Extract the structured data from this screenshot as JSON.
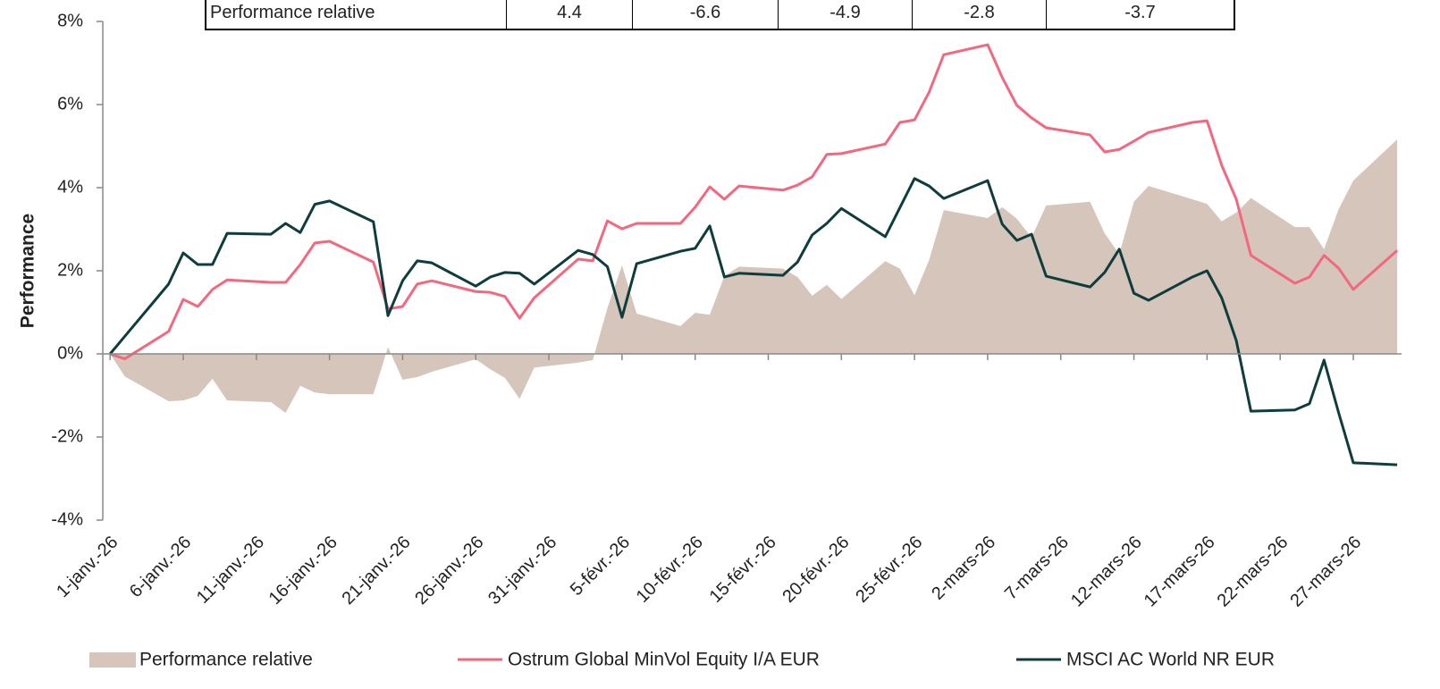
{
  "table": {
    "rows": [
      [
        "Performance relative",
        "4.4",
        "-6.6",
        "-4.9",
        "-2.8",
        "-3.7"
      ]
    ]
  },
  "chart_data": {
    "type": "line",
    "ylabel": "Performance",
    "x": [
      0,
      1,
      4,
      5,
      6,
      7,
      8,
      11,
      12,
      13,
      14,
      15,
      18,
      19,
      20,
      21,
      22,
      25,
      26,
      27,
      28,
      29,
      32,
      33,
      34,
      35,
      36,
      39,
      40,
      41,
      42,
      43,
      46,
      47,
      48,
      49,
      50,
      53,
      54,
      55,
      56,
      57,
      60,
      61,
      62,
      63,
      64,
      67,
      68,
      69,
      70,
      71,
      74,
      75,
      76,
      77,
      78,
      81,
      82,
      83,
      84,
      85,
      88
    ],
    "xlim": [
      -0.5,
      88.3
    ],
    "xticks": [
      {
        "value": 0,
        "label": "1-janv.-26"
      },
      {
        "value": 5,
        "label": "6-janv.-26"
      },
      {
        "value": 10,
        "label": "11-janv.-26"
      },
      {
        "value": 15,
        "label": "16-janv.-26"
      },
      {
        "value": 20,
        "label": "21-janv.-26"
      },
      {
        "value": 25,
        "label": "26-janv.-26"
      },
      {
        "value": 30,
        "label": "31-janv.-26"
      },
      {
        "value": 35,
        "label": "5-févr.-26"
      },
      {
        "value": 40,
        "label": "10-févr.-26"
      },
      {
        "value": 45,
        "label": "15-févr.-26"
      },
      {
        "value": 50,
        "label": "20-févr.-26"
      },
      {
        "value": 55,
        "label": "25-févr.-26"
      },
      {
        "value": 60,
        "label": "2-mars-26"
      },
      {
        "value": 65,
        "label": "7-mars-26"
      },
      {
        "value": 70,
        "label": "12-mars-26"
      },
      {
        "value": 75,
        "label": "17-mars-26"
      },
      {
        "value": 80,
        "label": "22-mars-26"
      },
      {
        "value": 85,
        "label": "27-mars-26"
      }
    ],
    "ylim": [
      -4,
      8
    ],
    "yticks": [
      {
        "value": -4,
        "label": "-4%"
      },
      {
        "value": -2,
        "label": "-2%"
      },
      {
        "value": 0,
        "label": "0%"
      },
      {
        "value": 2,
        "label": "2%"
      },
      {
        "value": 4,
        "label": "4%"
      },
      {
        "value": 6,
        "label": "6%"
      },
      {
        "value": 8,
        "label": "8%"
      }
    ],
    "series": [
      {
        "name": "Performance relative",
        "type": "area",
        "color": "#d5c5ba",
        "values": [
          0,
          -0.54,
          -1.14,
          -1.12,
          -1.01,
          -0.6,
          -1.12,
          -1.16,
          -1.42,
          -0.77,
          -0.93,
          -0.97,
          -0.97,
          0.16,
          -0.62,
          -0.56,
          -0.43,
          -0.13,
          -0.37,
          -0.58,
          -1.08,
          -0.33,
          -0.21,
          -0.15,
          1.1,
          2.13,
          0.97,
          0.67,
          0.99,
          0.94,
          1.87,
          2.1,
          2.05,
          1.85,
          1.4,
          1.66,
          1.32,
          2.23,
          2.05,
          1.41,
          2.26,
          3.46,
          3.27,
          3.53,
          3.25,
          2.8,
          3.57,
          3.66,
          2.9,
          2.4,
          3.66,
          4.04,
          3.72,
          3.61,
          3.19,
          3.4,
          3.75,
          3.05,
          3.05,
          2.52,
          3.48,
          4.17,
          5.16
        ]
      },
      {
        "name": "Ostrum Global MinVol Equity I/A EUR",
        "type": "line",
        "color": "#f4687f",
        "values": [
          0,
          -0.12,
          0.54,
          1.31,
          1.14,
          1.55,
          1.78,
          1.72,
          1.72,
          2.15,
          2.67,
          2.71,
          2.21,
          1.08,
          1.14,
          1.68,
          1.76,
          1.5,
          1.48,
          1.38,
          0.86,
          1.35,
          2.28,
          2.24,
          3.2,
          3.01,
          3.14,
          3.14,
          3.53,
          4.02,
          3.72,
          4.04,
          3.94,
          4.06,
          4.26,
          4.8,
          4.82,
          5.05,
          5.57,
          5.63,
          6.3,
          7.2,
          7.44,
          6.65,
          5.98,
          5.68,
          5.44,
          5.27,
          4.86,
          4.92,
          5.12,
          5.33,
          5.57,
          5.61,
          4.54,
          3.72,
          2.37,
          1.7,
          1.85,
          2.37,
          2.06,
          1.55,
          2.49
        ]
      },
      {
        "name": "MSCI AC World NR EUR",
        "type": "line",
        "color": "#0f3d3e",
        "values": [
          0,
          0.42,
          1.68,
          2.43,
          2.15,
          2.15,
          2.9,
          2.88,
          3.14,
          2.92,
          3.6,
          3.68,
          3.18,
          0.92,
          1.76,
          2.24,
          2.19,
          1.63,
          1.85,
          1.96,
          1.94,
          1.68,
          2.49,
          2.39,
          2.1,
          0.88,
          2.17,
          2.47,
          2.54,
          3.08,
          1.85,
          1.94,
          1.89,
          2.21,
          2.86,
          3.14,
          3.5,
          2.82,
          3.52,
          4.22,
          4.04,
          3.74,
          4.17,
          3.12,
          2.73,
          2.88,
          1.87,
          1.61,
          1.96,
          2.52,
          1.46,
          1.29,
          1.85,
          2.0,
          1.35,
          0.32,
          -1.38,
          -1.35,
          -1.2,
          -0.15,
          -1.42,
          -2.62,
          -2.67
        ]
      }
    ]
  }
}
